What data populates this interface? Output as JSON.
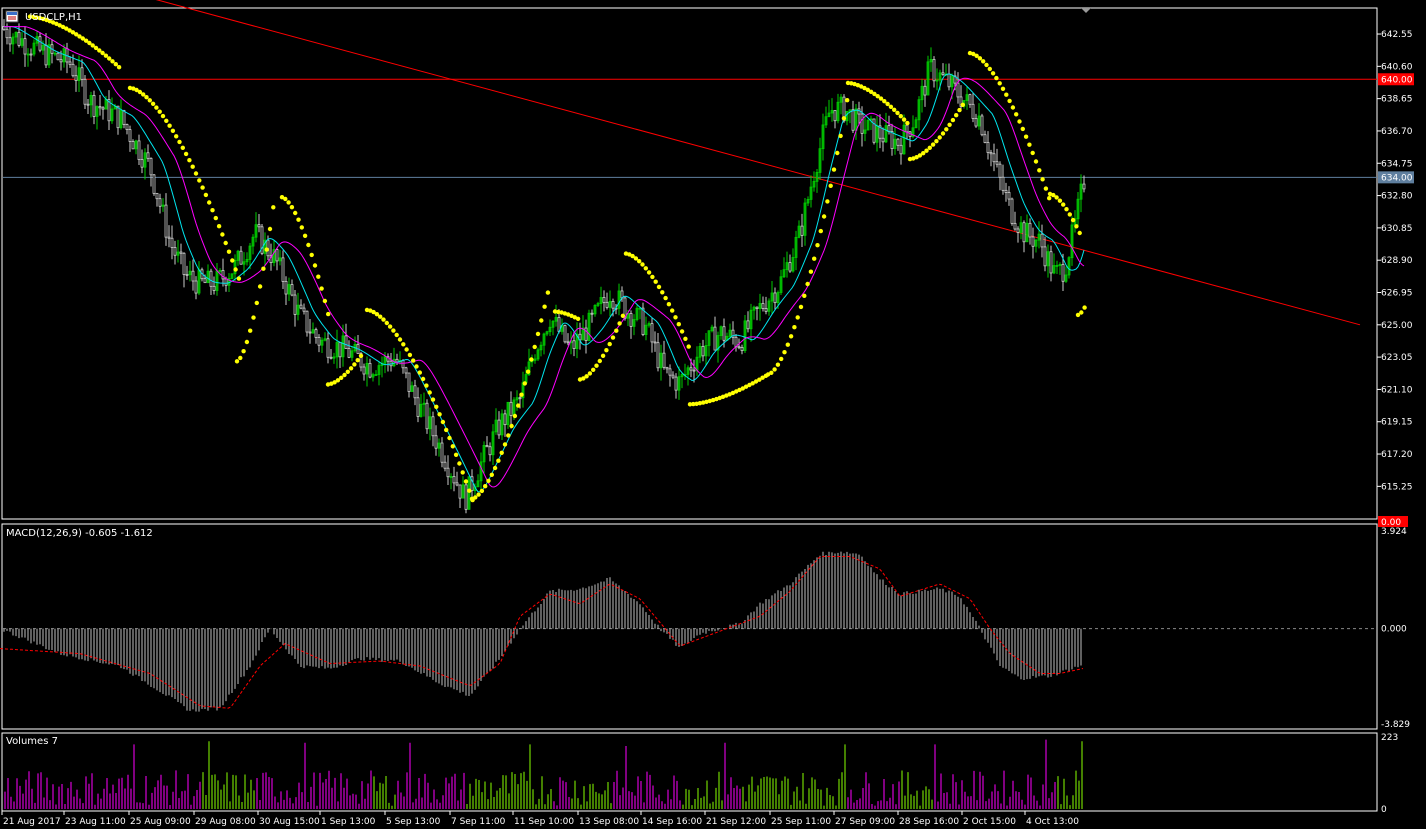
{
  "window": {
    "symbol_title": "USDCLP,H1",
    "scroll_marker_icon": "triangle-down-icon"
  },
  "colors": {
    "background": "#000000",
    "frame": "#ffffff",
    "bull": "#00cc00",
    "bear": "#cccccc",
    "ma_fast": "#00e5ee",
    "ma_slow": "#ff00ff",
    "sar": "#ffff00",
    "trendline": "#ff0000",
    "hline_red": "#ff0000",
    "hline_blue": "#5f7f9f",
    "macd_hist": "#c0c0c0",
    "macd_signal": "#ff0000",
    "vol_up": "#88ff00",
    "vol_down": "#ff00ff"
  },
  "chart_data": [
    {
      "type": "line",
      "title": "USDCLP,H1",
      "y_ticks": [
        "642.55",
        "640.60",
        "638.65",
        "636.70",
        "634.75",
        "632.80",
        "630.85",
        "628.90",
        "626.95",
        "625.00",
        "623.05",
        "621.10",
        "619.15",
        "617.20",
        "615.25"
      ],
      "ylim": [
        613.4,
        644.0
      ],
      "hlines": [
        {
          "value": 639.82,
          "label": "640.00",
          "color": "#ff0000"
        },
        {
          "value": 633.9,
          "label": "634.00",
          "color": "#5f7f9f"
        }
      ],
      "trendline": {
        "from_bar": -20,
        "from": 647.5,
        "to_bar": 1360,
        "to": 625.0
      },
      "x_labels": [
        "21 Aug 2017",
        "23 Aug 11:00",
        "25 Aug 09:00",
        "29 Aug 08:00",
        "30 Aug 15:00",
        "1 Sep 13:00",
        "5 Sep 13:00",
        "7 Sep 11:00",
        "11 Sep 10:00",
        "13 Sep 08:00",
        "14 Sep 16:00",
        "21 Sep 12:00",
        "25 Sep 11:00",
        "27 Sep 09:00",
        "28 Sep 16:00",
        "2 Oct 15:00",
        "4 Oct 13:00"
      ],
      "close_path": [
        [
          0,
          643.0
        ],
        [
          40,
          641.5
        ],
        [
          70,
          640.8
        ],
        [
          90,
          638.5
        ],
        [
          120,
          637.5
        ],
        [
          150,
          634.5
        ],
        [
          170,
          630.0
        ],
        [
          185,
          628.0
        ],
        [
          200,
          627.5
        ],
        [
          215,
          627.5
        ],
        [
          235,
          628.5
        ],
        [
          255,
          630.5
        ],
        [
          275,
          629.0
        ],
        [
          300,
          625.5
        ],
        [
          320,
          624.0
        ],
        [
          345,
          623.5
        ],
        [
          370,
          622.5
        ],
        [
          395,
          623.0
        ],
        [
          420,
          620.0
        ],
        [
          445,
          617.0
        ],
        [
          465,
          614.5
        ],
        [
          480,
          616.5
        ],
        [
          500,
          619.0
        ],
        [
          520,
          620.5
        ],
        [
          535,
          623.5
        ],
        [
          550,
          625.5
        ],
        [
          570,
          623.5
        ],
        [
          590,
          625.0
        ],
        [
          610,
          627.0
        ],
        [
          625,
          626.0
        ],
        [
          645,
          625.0
        ],
        [
          665,
          622.0
        ],
        [
          680,
          621.5
        ],
        [
          700,
          623.5
        ],
        [
          720,
          624.5
        ],
        [
          740,
          624.0
        ],
        [
          760,
          626.0
        ],
        [
          780,
          627.5
        ],
        [
          800,
          630.5
        ],
        [
          815,
          634.5
        ],
        [
          830,
          638.0
        ],
        [
          845,
          638.0
        ],
        [
          860,
          637.0
        ],
        [
          880,
          636.5
        ],
        [
          900,
          636.0
        ],
        [
          915,
          637.5
        ],
        [
          930,
          640.5
        ],
        [
          950,
          639.5
        ],
        [
          965,
          638.5
        ],
        [
          980,
          637.5
        ],
        [
          995,
          634.5
        ],
        [
          1010,
          632.0
        ],
        [
          1025,
          630.5
        ],
        [
          1040,
          630.0
        ],
        [
          1055,
          628.0
        ],
        [
          1065,
          628.5
        ],
        [
          1075,
          631.0
        ],
        [
          1085,
          634.0
        ]
      ],
      "sar_segments": [
        [
          [
            30,
            643.6
          ],
          [
            120,
            640.5
          ]
        ],
        [
          [
            130,
            639.3
          ],
          [
            240,
            627.6
          ]
        ],
        [
          [
            237,
            622.8
          ],
          [
            275,
            632.8
          ]
        ],
        [
          [
            282,
            632.7
          ],
          [
            330,
            625.2
          ]
        ],
        [
          [
            328,
            621.4
          ],
          [
            363,
            623.3
          ]
        ],
        [
          [
            367,
            625.9
          ],
          [
            475,
            614.0
          ]
        ],
        [
          [
            472,
            614.5
          ],
          [
            550,
            627.5
          ]
        ],
        [
          [
            555,
            625.8
          ],
          [
            580,
            625.3
          ]
        ],
        [
          [
            580,
            621.7
          ],
          [
            626,
            626.0
          ]
        ],
        [
          [
            626,
            629.3
          ],
          [
            690,
            623.5
          ]
        ],
        [
          [
            690,
            620.2
          ],
          [
            768,
            622.0
          ]
        ],
        [
          [
            768,
            622.0
          ],
          [
            850,
            639.5
          ]
        ],
        [
          [
            848,
            639.6
          ],
          [
            910,
            637.0
          ]
        ],
        [
          [
            910,
            635.0
          ],
          [
            965,
            638.5
          ]
        ],
        [
          [
            970,
            641.4
          ],
          [
            1050,
            632.5
          ]
        ],
        [
          [
            1050,
            632.9
          ],
          [
            1080,
            630.5
          ]
        ],
        [
          [
            1078,
            625.6
          ],
          [
            1086,
            626.2
          ]
        ]
      ]
    },
    {
      "type": "bar",
      "title": "MACD(12,26,9) -0.605 -1.612",
      "y_ticks": [
        "3.924",
        "0.000",
        "-3.829"
      ],
      "ylim": [
        -3.829,
        3.924
      ],
      "signal_label": "0.00",
      "histogram_path": [
        [
          0,
          0
        ],
        [
          60,
          -1.0
        ],
        [
          120,
          -1.5
        ],
        [
          160,
          -2.5
        ],
        [
          190,
          -3.3
        ],
        [
          220,
          -3.2
        ],
        [
          250,
          -1.5
        ],
        [
          270,
          0
        ],
        [
          300,
          -1.5
        ],
        [
          330,
          -1.6
        ],
        [
          360,
          -1.2
        ],
        [
          400,
          -1.3
        ],
        [
          440,
          -2.2
        ],
        [
          470,
          -2.7
        ],
        [
          500,
          -1.2
        ],
        [
          520,
          0
        ],
        [
          550,
          1.5
        ],
        [
          580,
          1.6
        ],
        [
          610,
          2.0
        ],
        [
          640,
          1.0
        ],
        [
          660,
          0
        ],
        [
          680,
          -0.8
        ],
        [
          700,
          -0.2
        ],
        [
          720,
          0
        ],
        [
          740,
          0.2
        ],
        [
          760,
          1.0
        ],
        [
          790,
          1.8
        ],
        [
          820,
          3.0
        ],
        [
          840,
          3.1
        ],
        [
          860,
          3.0
        ],
        [
          880,
          2.0
        ],
        [
          900,
          1.4
        ],
        [
          920,
          1.5
        ],
        [
          940,
          1.6
        ],
        [
          960,
          1.3
        ],
        [
          980,
          0
        ],
        [
          1000,
          -1.5
        ],
        [
          1020,
          -2.0
        ],
        [
          1050,
          -1.9
        ],
        [
          1080,
          -1.5
        ]
      ],
      "signal_path": [
        [
          0,
          -0.8
        ],
        [
          80,
          -1.0
        ],
        [
          150,
          -1.8
        ],
        [
          200,
          -3.1
        ],
        [
          230,
          -3.2
        ],
        [
          260,
          -1.5
        ],
        [
          285,
          -0.6
        ],
        [
          330,
          -1.4
        ],
        [
          380,
          -1.3
        ],
        [
          420,
          -1.5
        ],
        [
          470,
          -2.3
        ],
        [
          500,
          -1.4
        ],
        [
          520,
          0.5
        ],
        [
          550,
          1.4
        ],
        [
          580,
          1.0
        ],
        [
          610,
          1.8
        ],
        [
          640,
          1.2
        ],
        [
          680,
          -0.7
        ],
        [
          720,
          -0.1
        ],
        [
          760,
          0.5
        ],
        [
          790,
          1.5
        ],
        [
          820,
          2.9
        ],
        [
          850,
          2.9
        ],
        [
          880,
          2.4
        ],
        [
          900,
          1.3
        ],
        [
          940,
          1.8
        ],
        [
          970,
          1.2
        ],
        [
          990,
          0
        ],
        [
          1010,
          -1.0
        ],
        [
          1040,
          -1.8
        ],
        [
          1060,
          -1.8
        ],
        [
          1083,
          -1.6
        ]
      ]
    },
    {
      "type": "bar",
      "title": "Volumes 7",
      "y_ticks": [
        "223",
        "0"
      ],
      "ylim": [
        0,
        223
      ],
      "peaks": [
        [
          135,
          200
        ],
        [
          210,
          210
        ],
        [
          305,
          205
        ],
        [
          410,
          205
        ],
        [
          530,
          200
        ],
        [
          625,
          195
        ],
        [
          725,
          205
        ],
        [
          845,
          200
        ],
        [
          935,
          200
        ],
        [
          1045,
          215
        ],
        [
          1083,
          210
        ]
      ]
    }
  ]
}
